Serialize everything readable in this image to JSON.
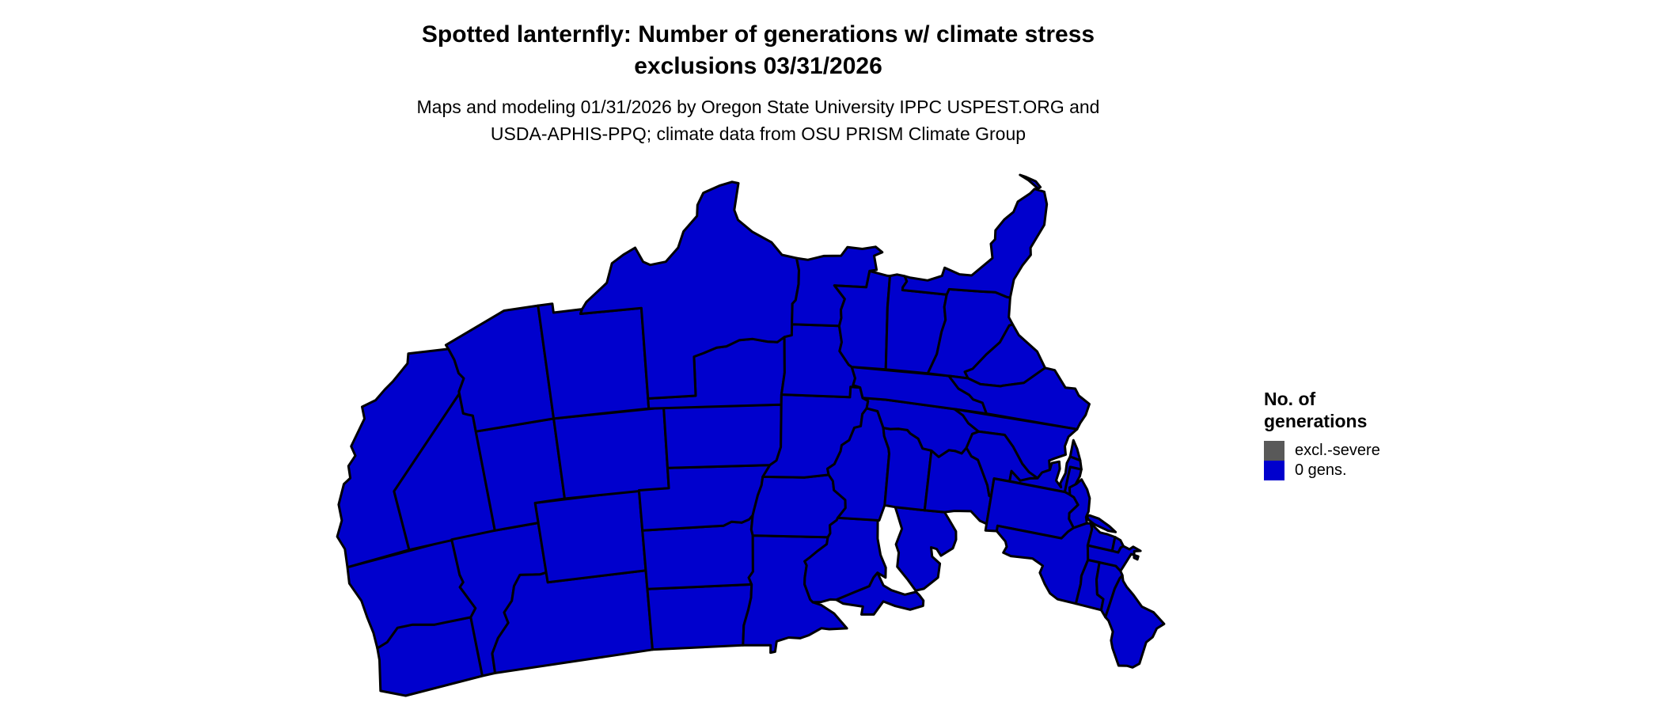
{
  "header": {
    "title_line1": "Spotted lanternfly: Number of generations w/ climate stress",
    "title_line2": "exclusions 03/31/2026",
    "subtitle_line1": "Maps and modeling 01/31/2026 by Oregon State University IPPC USPEST.ORG and",
    "subtitle_line2": "USDA-APHIS-PPQ; climate data from OSU PRISM Climate Group"
  },
  "legend": {
    "title_line1": "No. of",
    "title_line2": "generations",
    "items": [
      {
        "label": "excl.-severe",
        "color": "#595959"
      },
      {
        "label": "0 gens.",
        "color": "#0000CD"
      }
    ]
  },
  "chart_data": {
    "type": "choropleth",
    "title": "Spotted lanternfly: Number of generations w/ climate stress exclusions 03/31/2026",
    "subtitle": "Maps and modeling 01/31/2026 by Oregon State University IPPC USPEST.ORG and USDA-APHIS-PPQ; climate data from OSU PRISM Climate Group",
    "region": "contiguous United States (Albers projection)",
    "variable": "number of generations",
    "legend_title": "No. of generations",
    "legend_position": "right",
    "categories": [
      "excl.-severe",
      "0 gens."
    ],
    "colors": [
      "#595959",
      "#0000CD"
    ],
    "background_color": "#ffffff",
    "border_color": "#000000",
    "state_values": {
      "WA": "0 gens.",
      "OR": "0 gens.",
      "CA": "0 gens.",
      "NV": "0 gens.",
      "ID": "0 gens.",
      "MT": "0 gens.",
      "WY": "0 gens.",
      "UT": "0 gens.",
      "CO": "0 gens.",
      "AZ": "0 gens.",
      "NM": "0 gens.",
      "ND": "0 gens.",
      "SD": "0 gens.",
      "NE": "0 gens.",
      "KS": "0 gens.",
      "OK": "0 gens.",
      "TX": "0 gens.",
      "MN": "0 gens.",
      "IA": "0 gens.",
      "MO": "0 gens.",
      "AR": "0 gens.",
      "LA": "0 gens.",
      "WI": "0 gens.",
      "IL": "0 gens.",
      "MI": "0 gens.",
      "IN": "0 gens.",
      "OH": "0 gens.",
      "KY": "0 gens.",
      "TN": "0 gens.",
      "MS": "0 gens.",
      "AL": "0 gens.",
      "GA": "0 gens.",
      "FL": "0 gens.",
      "SC": "0 gens.",
      "NC": "0 gens.",
      "VA": "0 gens.",
      "WV": "0 gens.",
      "MD": "0 gens.",
      "DE": "0 gens.",
      "PA": "0 gens.",
      "NJ": "0 gens.",
      "NY": "0 gens.",
      "CT": "0 gens.",
      "RI": "0 gens.",
      "MA": "0 gens.",
      "VT": "0 gens.",
      "NH": "0 gens.",
      "ME": "0 gens."
    }
  }
}
